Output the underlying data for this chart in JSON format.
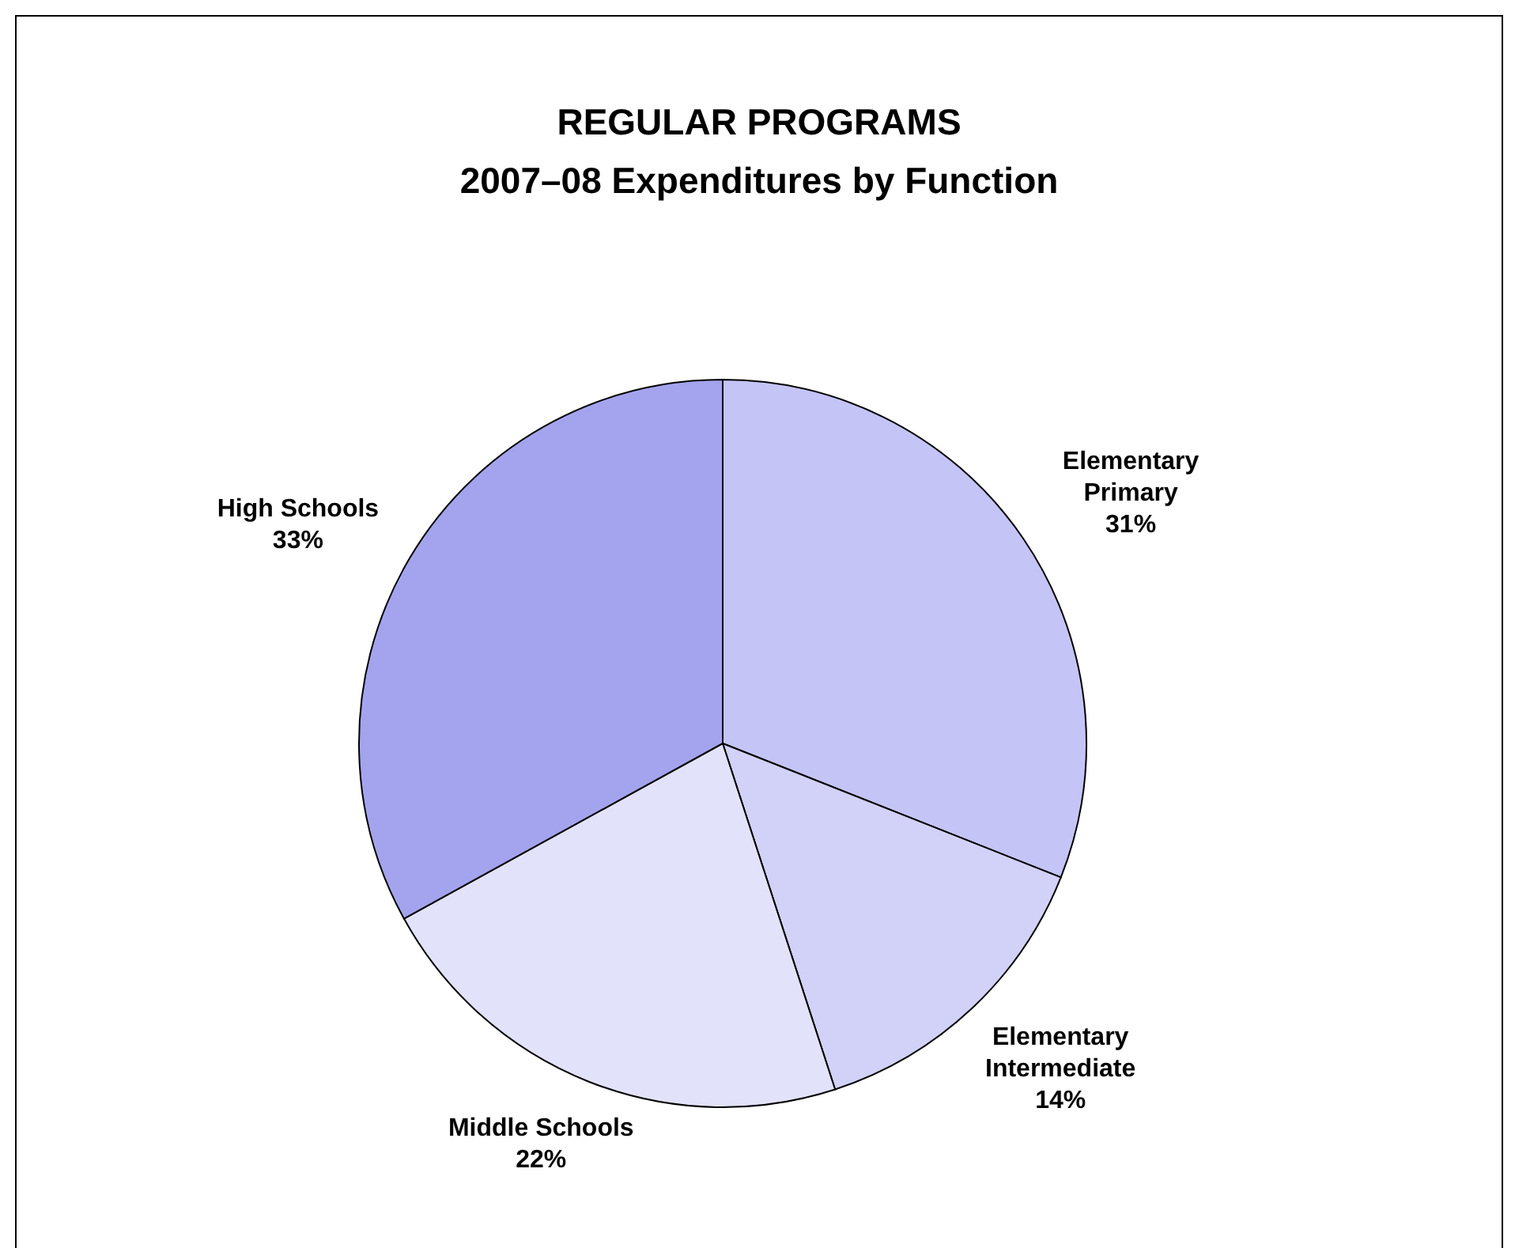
{
  "chart_data": {
    "type": "pie",
    "title": "REGULAR PROGRAMS",
    "subtitle": "2007–08 Expenditures by Function",
    "categories": [
      "Elementary Primary",
      "Elementary Intermediate",
      "Middle Schools",
      "High Schools"
    ],
    "values": [
      31,
      14,
      22,
      33
    ],
    "value_labels": [
      "31%",
      "14%",
      "22%",
      "33%"
    ],
    "colors": [
      "#c4c4f6",
      "#d2d2f8",
      "#e2e2fa",
      "#a4a4ee"
    ]
  }
}
